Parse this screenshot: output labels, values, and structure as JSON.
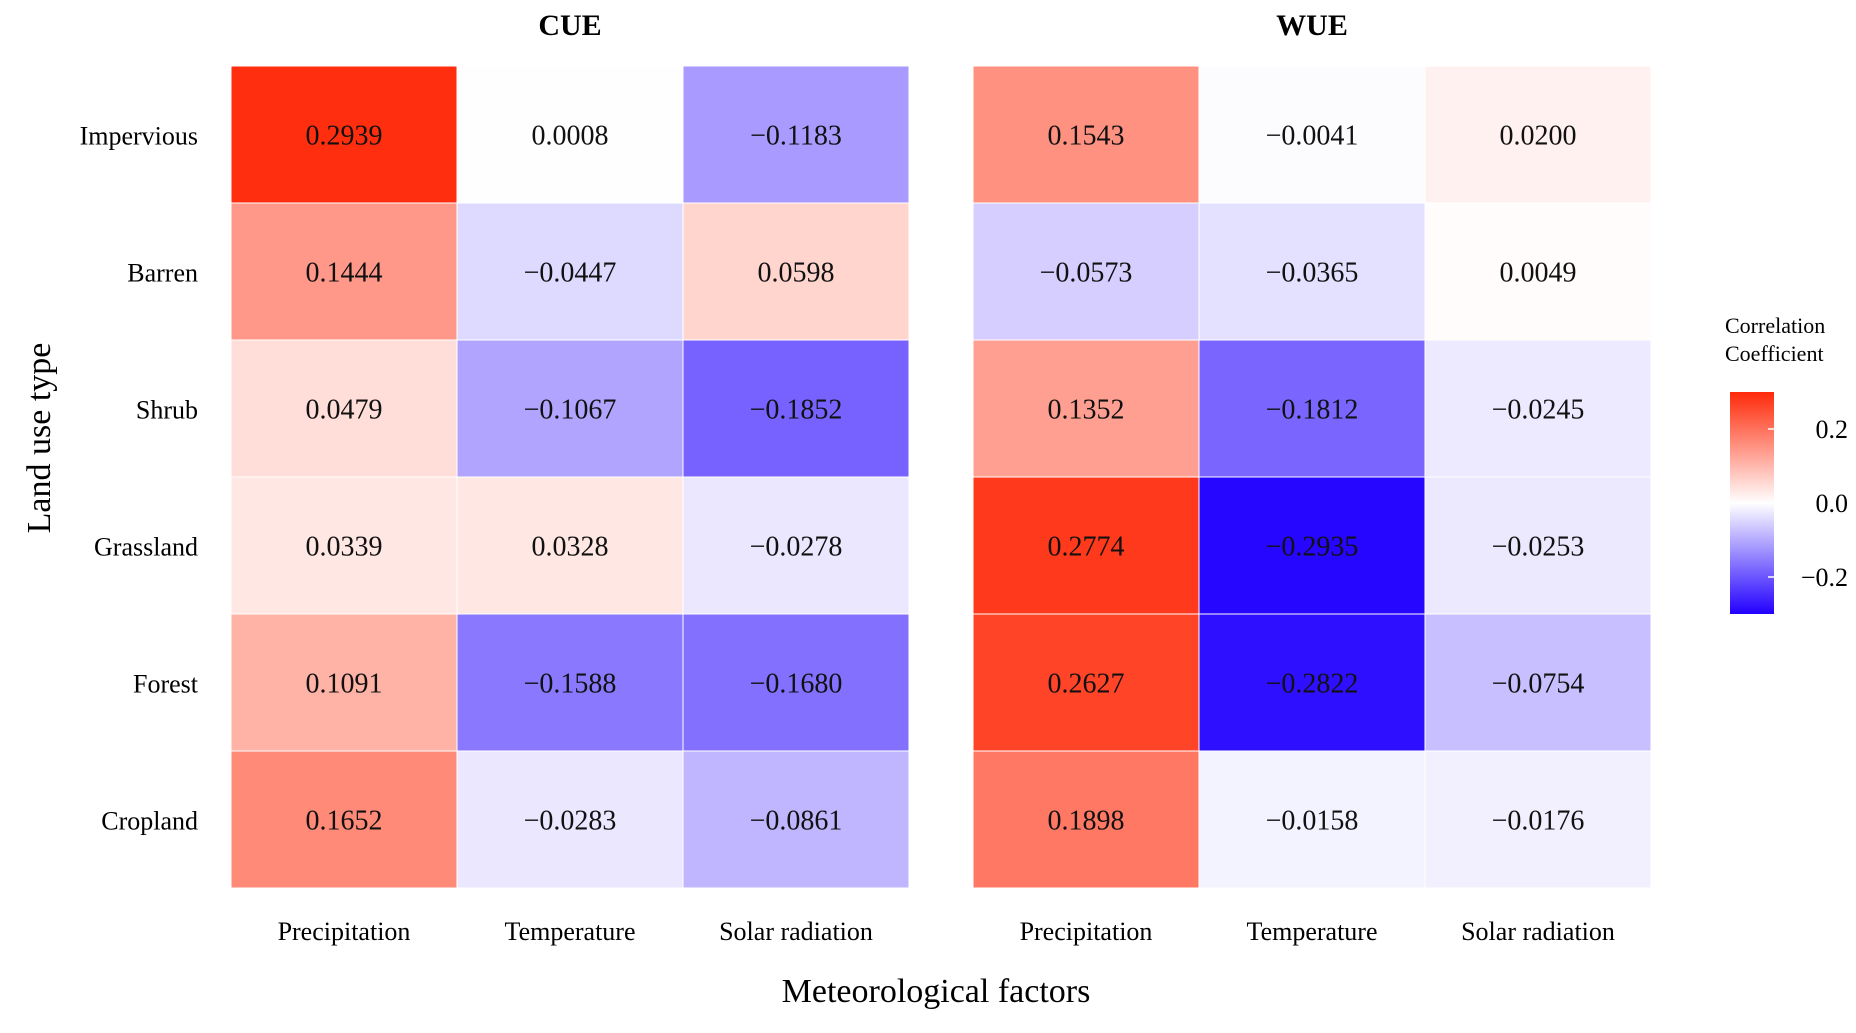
{
  "chart_data": {
    "type": "heatmap",
    "xlabel": "Meteorological factors",
    "ylabel": "Land use type",
    "rows": [
      "Impervious",
      "Barren",
      "Shrub",
      "Grassland",
      "Forest",
      "Cropland"
    ],
    "legend": {
      "title_line1": "Correlation",
      "title_line2": "Coefficient",
      "range": [
        -0.3,
        0.3
      ],
      "ticks": [
        {
          "value": 0.2,
          "label": "0.2"
        },
        {
          "value": 0.0,
          "label": "0.0"
        },
        {
          "value": -0.2,
          "label": "−0.2"
        }
      ],
      "colors": {
        "low": "#2200ff",
        "mid": "#ffffff",
        "high": "#ff2a0a"
      }
    },
    "panels": [
      {
        "title": "CUE",
        "columns": [
          "Precipitation",
          "Temperature",
          "Solar radiation"
        ],
        "values": [
          [
            0.2939,
            0.0008,
            -0.1183
          ],
          [
            0.1444,
            -0.0447,
            0.0598
          ],
          [
            0.0479,
            -0.1067,
            -0.1852
          ],
          [
            0.0339,
            0.0328,
            -0.0278
          ],
          [
            0.1091,
            -0.1588,
            -0.168
          ],
          [
            0.1652,
            -0.0283,
            -0.0861
          ]
        ],
        "labels": [
          [
            "0.2939",
            "0.0008",
            "−0.1183"
          ],
          [
            "0.1444",
            "−0.0447",
            "0.0598"
          ],
          [
            "0.0479",
            "−0.1067",
            "−0.1852"
          ],
          [
            "0.0339",
            "0.0328",
            "−0.0278"
          ],
          [
            "0.1091",
            "−0.1588",
            "−0.1680"
          ],
          [
            "0.1652",
            "−0.0283",
            "−0.0861"
          ]
        ]
      },
      {
        "title": "WUE",
        "columns": [
          "Precipitation",
          "Temperature",
          "Solar radiation"
        ],
        "values": [
          [
            0.1543,
            -0.0041,
            0.02
          ],
          [
            -0.0573,
            -0.0365,
            0.0049
          ],
          [
            0.1352,
            -0.1812,
            -0.0245
          ],
          [
            0.2774,
            -0.2935,
            -0.0253
          ],
          [
            0.2627,
            -0.2822,
            -0.0754
          ],
          [
            0.1898,
            -0.0158,
            -0.0176
          ]
        ],
        "labels": [
          [
            "0.1543",
            "−0.0041",
            "0.0200"
          ],
          [
            "−0.0573",
            "−0.0365",
            "0.0049"
          ],
          [
            "0.1352",
            "−0.1812",
            "−0.0245"
          ],
          [
            "0.2774",
            "−0.2935",
            "−0.0253"
          ],
          [
            "0.2627",
            "−0.2822",
            "−0.0754"
          ],
          [
            "0.1898",
            "−0.0158",
            "−0.0176"
          ]
        ]
      }
    ]
  }
}
